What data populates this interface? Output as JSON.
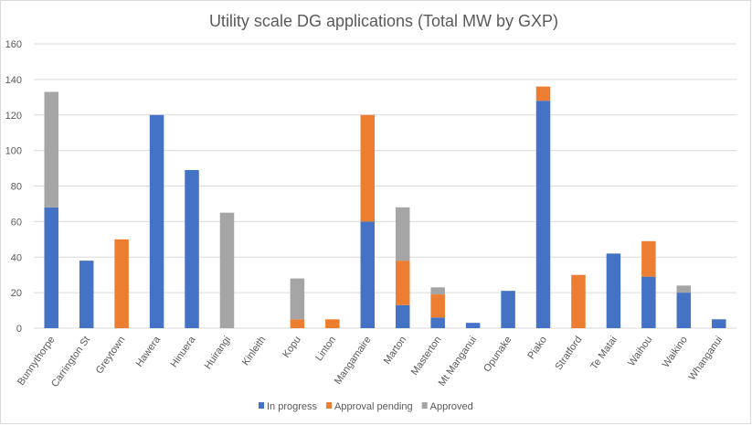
{
  "chart_data": {
    "type": "bar",
    "stacked": true,
    "title": "Utility scale DG applications (Total MW by GXP)",
    "xlabel": "",
    "ylabel": "",
    "ylim": [
      0,
      160
    ],
    "yticks": [
      0,
      20,
      40,
      60,
      80,
      100,
      120,
      140,
      160
    ],
    "grid": true,
    "legend": "bottom",
    "categories": [
      "Bunnythorpe",
      "Carrington St",
      "Greytown",
      "Hawera",
      "Hinuera",
      "Huirangi",
      "Kinleith",
      "Kopu",
      "Linton",
      "Mangamaire",
      "Marton",
      "Masterton",
      "Mt Manganui",
      "Opunake",
      "Piako",
      "Stratford",
      "Te Matai",
      "Waihou",
      "Waikino",
      "Whanganui"
    ],
    "series": [
      {
        "name": "In progress",
        "color": "#4472C4",
        "values": [
          68,
          38,
          0,
          120,
          89,
          0,
          0,
          0,
          0,
          60,
          13,
          6,
          3,
          21,
          128,
          0,
          42,
          29,
          20,
          5
        ]
      },
      {
        "name": "Approval pending",
        "color": "#ED7D31",
        "values": [
          0,
          0,
          50,
          0,
          0,
          0,
          0,
          5,
          5,
          60,
          25,
          13,
          0,
          0,
          8,
          30,
          0,
          20,
          0,
          0
        ]
      },
      {
        "name": "Approved",
        "color": "#A5A5A5",
        "values": [
          65,
          0,
          0,
          0,
          0,
          65,
          0,
          23,
          0,
          0,
          30,
          4,
          0,
          0,
          0,
          0,
          0,
          0,
          4,
          0
        ]
      }
    ]
  }
}
